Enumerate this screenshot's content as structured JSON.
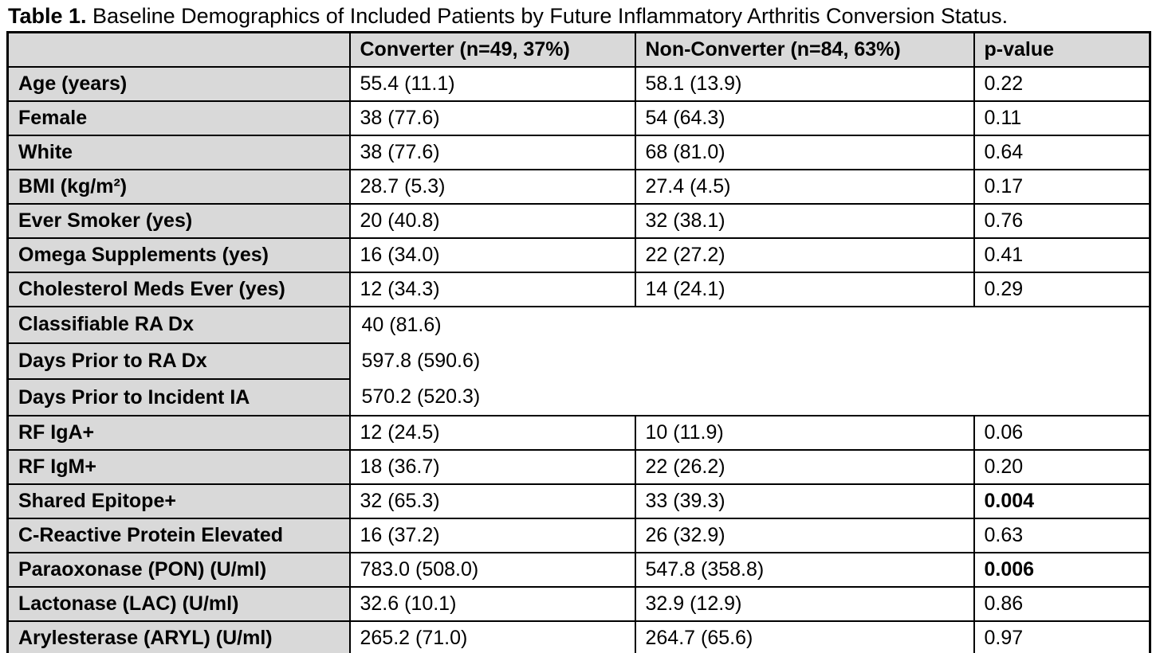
{
  "title": {
    "prefix": "Table 1.",
    "text": " Baseline Demographics of Included Patients by Future Inflammatory Arthritis Conversion Status."
  },
  "table": {
    "columns": [
      "",
      "Converter (n=49, 37%)",
      "Non-Converter (n=84, 63%)",
      "p-value"
    ],
    "colors": {
      "header_bg": "#d9d9d9",
      "label_bg": "#d9d9d9",
      "cell_bg": "#ffffff",
      "border": "#000000"
    },
    "rows": [
      {
        "type": "normal",
        "label": "Age (years)",
        "converter": "55.4 (11.1)",
        "non_converter": "58.1 (13.9)",
        "p_value": "0.22",
        "p_bold": false
      },
      {
        "type": "normal",
        "label": "Female",
        "converter": "38 (77.6)",
        "non_converter": "54 (64.3)",
        "p_value": "0.11",
        "p_bold": false
      },
      {
        "type": "normal",
        "label": "White",
        "converter": "38 (77.6)",
        "non_converter": "68 (81.0)",
        "p_value": "0.64",
        "p_bold": false
      },
      {
        "type": "normal",
        "label": "BMI (kg/m²)",
        "converter": "28.7 (5.3)",
        "non_converter": "27.4 (4.5)",
        "p_value": "0.17",
        "p_bold": false
      },
      {
        "type": "normal",
        "label": "Ever Smoker (yes)",
        "converter": "20 (40.8)",
        "non_converter": "32 (38.1)",
        "p_value": "0.76",
        "p_bold": false
      },
      {
        "type": "normal",
        "label": "Omega Supplements (yes)",
        "converter": "16 (34.0)",
        "non_converter": "22 (27.2)",
        "p_value": "0.41",
        "p_bold": false
      },
      {
        "type": "normal",
        "label": "Cholesterol Meds Ever (yes)",
        "converter": "12 (34.3)",
        "non_converter": "14 (24.1)",
        "p_value": "0.29",
        "p_bold": false
      },
      {
        "type": "merged_first",
        "label": "Classifiable RA Dx",
        "merged_values": [
          "40 (81.6)",
          "597.8 (590.6)",
          "570.2 (520.3)"
        ]
      },
      {
        "type": "merged_cont",
        "label": "Days Prior to RA Dx"
      },
      {
        "type": "merged_cont",
        "label": "Days Prior to Incident IA"
      },
      {
        "type": "normal",
        "label": "RF IgA+",
        "converter": "12 (24.5)",
        "non_converter": "10 (11.9)",
        "p_value": "0.06",
        "p_bold": false
      },
      {
        "type": "normal",
        "label": "RF IgM+",
        "converter": "18 (36.7)",
        "non_converter": "22 (26.2)",
        "p_value": "0.20",
        "p_bold": false
      },
      {
        "type": "normal",
        "label": "Shared Epitope+",
        "converter": "32 (65.3)",
        "non_converter": "33 (39.3)",
        "p_value": "0.004",
        "p_bold": true
      },
      {
        "type": "normal",
        "label": "C-Reactive Protein Elevated",
        "converter": "16 (37.2)",
        "non_converter": "26 (32.9)",
        "p_value": "0.63",
        "p_bold": false
      },
      {
        "type": "normal",
        "label": "Paraoxonase (PON) (U/ml)",
        "converter": "783.0 (508.0)",
        "non_converter": "547.8 (358.8)",
        "p_value": "0.006",
        "p_bold": true
      },
      {
        "type": "normal",
        "label": "Lactonase (LAC) (U/ml)",
        "converter": "32.6 (10.1)",
        "non_converter": "32.9 (12.9)",
        "p_value": "0.86",
        "p_bold": false
      },
      {
        "type": "normal",
        "label": "Arylesterase (ARYL) (U/ml)",
        "converter": "265.2 (71.0)",
        "non_converter": "264.7 (65.6)",
        "p_value": "0.97",
        "p_bold": false
      }
    ]
  }
}
